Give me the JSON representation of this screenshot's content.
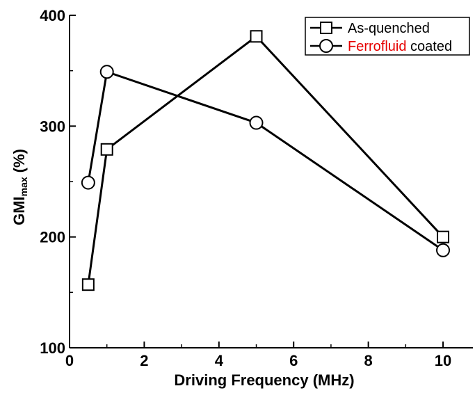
{
  "chart_data": {
    "type": "line",
    "xlabel": "Driving Frequency (MHz)",
    "ylabel": {
      "main": "GMI",
      "sub": "max",
      "unit": "(%)"
    },
    "xlim": [
      0,
      10.8
    ],
    "ylim": [
      100,
      400
    ],
    "x_ticks": [
      0,
      2,
      4,
      6,
      8,
      10
    ],
    "y_ticks": [
      100,
      200,
      300,
      400
    ],
    "grid": false,
    "legend_position": "top-right",
    "series": [
      {
        "name": "As-quenched",
        "marker": "square",
        "x": [
          0.5,
          1,
          5,
          10
        ],
        "y": [
          157,
          279,
          381,
          200
        ]
      },
      {
        "name_parts": [
          {
            "text": "Ferrofluid",
            "color": "#e60000"
          },
          {
            "text": " coated",
            "color": "#000000"
          }
        ],
        "marker": "circle",
        "x": [
          0.5,
          1,
          5,
          10
        ],
        "y": [
          249,
          349,
          303,
          188
        ]
      }
    ]
  }
}
